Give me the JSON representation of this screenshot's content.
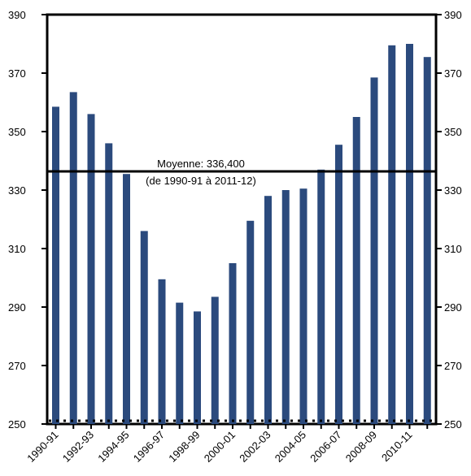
{
  "chart_data": {
    "type": "bar",
    "title": "",
    "xlabel": "",
    "ylabel": "",
    "ylim": [
      250,
      390
    ],
    "y_ticks": [
      250,
      270,
      290,
      310,
      330,
      350,
      370,
      390
    ],
    "y_tick_labels": [
      "250",
      "270",
      "290",
      "310",
      "330",
      "350",
      "370",
      "390"
    ],
    "categories": [
      "1990-91",
      "1991-92",
      "1992-93",
      "1993-94",
      "1994-95",
      "1995-96",
      "1996-97",
      "1997-98",
      "1998-99",
      "1999-00",
      "2000-01",
      "2001-02",
      "2002-03",
      "2003-04",
      "2004-05",
      "2005-06",
      "2006-07",
      "2007-08",
      "2008-09",
      "2009-10",
      "2010-11",
      "2011-12"
    ],
    "x_tick_labels": [
      "1990-91",
      "1992-93",
      "1994-95",
      "1996-97",
      "1998-99",
      "2000-01",
      "2002-03",
      "2004-05",
      "2006-07",
      "2008-09",
      "2010-11"
    ],
    "series": [
      {
        "values": [
          358.5,
          363.5,
          356,
          346,
          335.5,
          316,
          299.5,
          291.5,
          288.5,
          293.5,
          305,
          319.5,
          328,
          330,
          330.5,
          337,
          345.5,
          355,
          368.5,
          379.5,
          380,
          375.5
        ]
      }
    ],
    "reference_line": {
      "value": 336.4,
      "label_line1": "Moyenne:  336,400",
      "label_line2": "(de 1990-91 à 2011-12)"
    },
    "grid": false,
    "legend": "none",
    "colors": {
      "bar": "#2b4a7d",
      "axis": "#000000",
      "mean_line": "#000000"
    }
  }
}
